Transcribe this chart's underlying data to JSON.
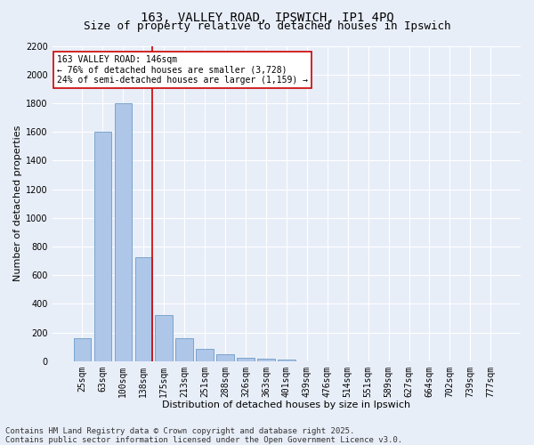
{
  "title": "163, VALLEY ROAD, IPSWICH, IP1 4PQ",
  "subtitle": "Size of property relative to detached houses in Ipswich",
  "xlabel": "Distribution of detached houses by size in Ipswich",
  "ylabel": "Number of detached properties",
  "categories": [
    "25sqm",
    "63sqm",
    "100sqm",
    "138sqm",
    "175sqm",
    "213sqm",
    "251sqm",
    "288sqm",
    "326sqm",
    "363sqm",
    "401sqm",
    "439sqm",
    "476sqm",
    "514sqm",
    "551sqm",
    "589sqm",
    "627sqm",
    "664sqm",
    "702sqm",
    "739sqm",
    "777sqm"
  ],
  "values": [
    160,
    1600,
    1800,
    725,
    320,
    160,
    85,
    50,
    25,
    15,
    10,
    0,
    0,
    0,
    0,
    0,
    0,
    0,
    0,
    0,
    0
  ],
  "bar_color": "#aec6e8",
  "bar_edge_color": "#5a8fc0",
  "vline_index": 3,
  "vline_color": "#cc0000",
  "annotation_text": "163 VALLEY ROAD: 146sqm\n← 76% of detached houses are smaller (3,728)\n24% of semi-detached houses are larger (1,159) →",
  "annotation_box_facecolor": "#ffffff",
  "annotation_box_edgecolor": "#cc0000",
  "ylim": [
    0,
    2200
  ],
  "yticks": [
    0,
    200,
    400,
    600,
    800,
    1000,
    1200,
    1400,
    1600,
    1800,
    2000,
    2200
  ],
  "background_color": "#e8eef8",
  "grid_color": "#ffffff",
  "footer": "Contains HM Land Registry data © Crown copyright and database right 2025.\nContains public sector information licensed under the Open Government Licence v3.0.",
  "title_fontsize": 10,
  "subtitle_fontsize": 9,
  "axis_label_fontsize": 8,
  "tick_fontsize": 7,
  "annotation_fontsize": 7,
  "footer_fontsize": 6.5
}
